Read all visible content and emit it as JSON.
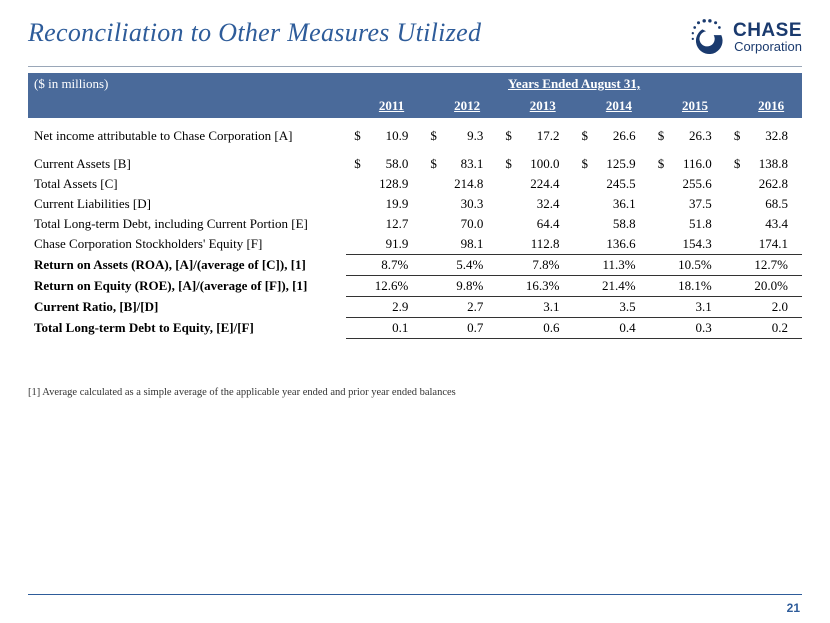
{
  "title": "Reconciliation to Other Measures Utilized",
  "logo": {
    "main": "CHASE",
    "sub": "Corporation"
  },
  "colors": {
    "title": "#2e5c9a",
    "band": "#4a6a9a",
    "logo": "#1a3a6e",
    "rule": "#333333",
    "page_rule": "#2e5c9a"
  },
  "table": {
    "unit_label": "($ in millions)",
    "years_header": "Years Ended August 31,",
    "years": [
      "2011",
      "2012",
      "2013",
      "2014",
      "2015",
      "2016"
    ],
    "data_rows": [
      {
        "label": "Net income attributable to Chase Corporation [A]",
        "dollar": true,
        "vals": [
          "10.9",
          "9.3",
          "17.2",
          "26.6",
          "26.3",
          "32.8"
        ]
      }
    ],
    "balance_rows": [
      {
        "label": "Current Assets [B]",
        "dollar": true,
        "vals": [
          "58.0",
          "83.1",
          "100.0",
          "125.9",
          "116.0",
          "138.8"
        ]
      },
      {
        "label": "Total Assets [C]",
        "dollar": false,
        "vals": [
          "128.9",
          "214.8",
          "224.4",
          "245.5",
          "255.6",
          "262.8"
        ]
      },
      {
        "label": "Current Liabilities [D]",
        "dollar": false,
        "vals": [
          "19.9",
          "30.3",
          "32.4",
          "36.1",
          "37.5",
          "68.5"
        ]
      },
      {
        "label": "Total Long-term Debt, including Current Portion [E]",
        "dollar": false,
        "vals": [
          "12.7",
          "70.0",
          "64.4",
          "58.8",
          "51.8",
          "43.4"
        ]
      },
      {
        "label": "Chase Corporation Stockholders' Equity  [F]",
        "dollar": false,
        "vals": [
          "91.9",
          "98.1",
          "112.8",
          "136.6",
          "154.3",
          "174.1"
        ]
      }
    ],
    "metric_rows": [
      {
        "label": "Return on Assets (ROA), [A]/(average of  [C]), [1]",
        "vals": [
          "8.7%",
          "5.4%",
          "7.8%",
          "11.3%",
          "10.5%",
          "12.7%"
        ]
      },
      {
        "label": "Return on Equity (ROE), [A]/(average of [F]), [1]",
        "vals": [
          "12.6%",
          "9.8%",
          "16.3%",
          "21.4%",
          "18.1%",
          "20.0%"
        ]
      },
      {
        "label": "Current Ratio, [B]/[D]",
        "vals": [
          "2.9",
          "2.7",
          "3.1",
          "3.5",
          "3.1",
          "2.0"
        ]
      },
      {
        "label": "Total Long-term Debt to Equity, [E]/[F]",
        "vals": [
          "0.1",
          "0.7",
          "0.6",
          "0.4",
          "0.3",
          "0.2"
        ]
      }
    ]
  },
  "footnote": "[1] Average calculated as a simple average of the applicable year ended and prior year ended balances",
  "page_number": "21"
}
